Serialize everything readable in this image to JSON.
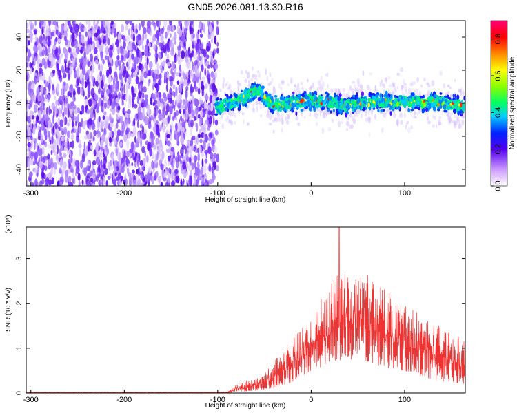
{
  "title": "GN05.2026.081.13.30.R16",
  "colors": {
    "background": "#ffffff",
    "snr_line": "#ee3333",
    "axis": "#000000",
    "spectrogram_scatter": "#8a2be2",
    "spectrogram_band": "#1a1aff"
  },
  "chart_data": [
    {
      "type": "heatmap",
      "name": "spectrogram",
      "xlabel": "Height of straight line (km)",
      "ylabel": "Frequency (Hz)",
      "xlim": [
        -305,
        165
      ],
      "ylim": [
        -50,
        50
      ],
      "x_ticks": [
        -300,
        -200,
        -100,
        0,
        100
      ],
      "y_ticks": [
        -40,
        -20,
        0,
        20,
        40
      ],
      "grid": false,
      "colorbar": {
        "label": "Normalized spectral amplitude",
        "range": [
          0.0,
          0.9
        ],
        "ticks": [
          "0.0",
          "0.2",
          "0.4",
          "0.6",
          "0.8"
        ]
      },
      "band_center_hz": [
        [
          -100,
          -2
        ],
        [
          -90,
          -1
        ],
        [
          -80,
          1
        ],
        [
          -70,
          4
        ],
        [
          -60,
          8
        ],
        [
          -55,
          7
        ],
        [
          -50,
          3
        ],
        [
          -40,
          -1
        ],
        [
          -30,
          -1
        ],
        [
          -20,
          0
        ],
        [
          -10,
          1
        ],
        [
          0,
          2
        ],
        [
          10,
          1
        ],
        [
          20,
          1
        ],
        [
          30,
          -1
        ],
        [
          40,
          -1
        ],
        [
          50,
          0
        ],
        [
          60,
          0
        ],
        [
          70,
          1
        ],
        [
          80,
          1
        ],
        [
          90,
          0
        ],
        [
          100,
          1
        ],
        [
          110,
          1
        ],
        [
          120,
          0
        ],
        [
          130,
          1
        ],
        [
          140,
          0
        ],
        [
          150,
          -1
        ],
        [
          160,
          -1
        ]
      ]
    },
    {
      "type": "line",
      "name": "snr",
      "xlabel": "Height of straight line (km)",
      "ylabel": "SNR (10 * v/v)",
      "y_multiplier": "(x10⁴)",
      "xlim": [
        -305,
        165
      ],
      "ylim": [
        0,
        3.7
      ],
      "x_ticks": [
        -300,
        -200,
        -100,
        0,
        100
      ],
      "y_ticks": [
        0,
        1,
        2,
        3
      ],
      "grid": false,
      "envelope": [
        [
          -305,
          0.0
        ],
        [
          -90,
          0.02
        ],
        [
          -80,
          0.18
        ],
        [
          -70,
          0.28
        ],
        [
          -60,
          0.32
        ],
        [
          -50,
          0.42
        ],
        [
          -40,
          0.75
        ],
        [
          -30,
          0.95
        ],
        [
          -20,
          1.25
        ],
        [
          -10,
          1.45
        ],
        [
          0,
          1.7
        ],
        [
          10,
          2.1
        ],
        [
          20,
          2.4
        ],
        [
          30,
          2.7
        ],
        [
          40,
          2.6
        ],
        [
          50,
          2.75
        ],
        [
          60,
          2.7
        ],
        [
          70,
          2.5
        ],
        [
          80,
          2.3
        ],
        [
          90,
          2.2
        ],
        [
          100,
          2.0
        ],
        [
          110,
          1.85
        ],
        [
          120,
          1.75
        ],
        [
          130,
          1.6
        ],
        [
          140,
          1.5
        ],
        [
          150,
          1.35
        ],
        [
          165,
          1.2
        ]
      ],
      "floor": [
        [
          -305,
          0.0
        ],
        [
          -90,
          0.0
        ],
        [
          -80,
          0.02
        ],
        [
          -60,
          0.05
        ],
        [
          -40,
          0.1
        ],
        [
          -20,
          0.25
        ],
        [
          0,
          0.45
        ],
        [
          20,
          0.7
        ],
        [
          40,
          0.75
        ],
        [
          60,
          0.7
        ],
        [
          80,
          0.55
        ],
        [
          100,
          0.5
        ],
        [
          120,
          0.35
        ],
        [
          140,
          0.25
        ],
        [
          165,
          0.2
        ]
      ],
      "peak": [
        30,
        3.7
      ]
    }
  ]
}
